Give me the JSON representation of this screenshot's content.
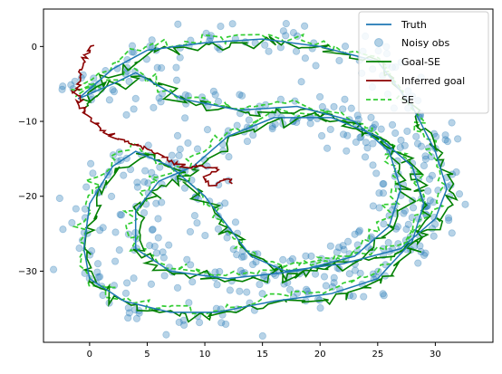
{
  "chart_data": {
    "type": "line",
    "xlim": [
      -4.0,
      35.0
    ],
    "ylim": [
      -39.5,
      5.0
    ],
    "xticks": [
      0,
      5,
      10,
      15,
      20,
      25,
      30
    ],
    "yticks": [
      0,
      -10,
      -20,
      -30
    ],
    "grid": false,
    "legend_position": "top-right",
    "series": [
      {
        "name": "Truth",
        "kind": "line",
        "color": "#1f77b4",
        "points": [
          [
            -1,
            -7
          ],
          [
            2,
            -3
          ],
          [
            5,
            -0.5
          ],
          [
            10,
            0.5
          ],
          [
            15,
            1
          ],
          [
            20,
            0
          ],
          [
            25,
            -2
          ],
          [
            28,
            -8
          ],
          [
            30,
            -14
          ],
          [
            31,
            -19
          ],
          [
            30,
            -23
          ],
          [
            27,
            -27
          ],
          [
            22,
            -29
          ],
          [
            17,
            -30
          ],
          [
            14,
            -28
          ],
          [
            12,
            -24
          ],
          [
            10,
            -20
          ],
          [
            7,
            -16
          ],
          [
            4,
            -14
          ],
          [
            2,
            -16
          ],
          [
            0,
            -21
          ],
          [
            -0.5,
            -27
          ],
          [
            0,
            -31
          ],
          [
            3,
            -34
          ],
          [
            7,
            -35.5
          ],
          [
            11,
            -35.5
          ],
          [
            16,
            -34
          ],
          [
            21,
            -33
          ],
          [
            25,
            -31
          ],
          [
            28,
            -26
          ],
          [
            29,
            -21
          ],
          [
            28,
            -16
          ],
          [
            25,
            -12
          ],
          [
            21,
            -9.5
          ],
          [
            16,
            -9.5
          ],
          [
            12,
            -12
          ],
          [
            9,
            -16
          ],
          [
            6,
            -18
          ],
          [
            4,
            -22
          ],
          [
            4,
            -27
          ],
          [
            7,
            -30
          ],
          [
            12,
            -31
          ],
          [
            18,
            -30
          ],
          [
            23,
            -28
          ],
          [
            26,
            -24
          ],
          [
            27,
            -19
          ],
          [
            26,
            -14
          ],
          [
            23,
            -10
          ],
          [
            18,
            -8
          ],
          [
            13,
            -8.5
          ],
          [
            8,
            -7
          ],
          [
            4,
            -3.5
          ],
          [
            2,
            -5
          ],
          [
            -1,
            -7
          ]
        ]
      },
      {
        "name": "Noisy obs",
        "kind": "scatter",
        "color": "#1f77b4"
      },
      {
        "name": "Goal-SE",
        "kind": "line",
        "color": "#008000",
        "offset": [
          0.3,
          -0.4
        ]
      },
      {
        "name": "Inferred goal",
        "kind": "line",
        "color": "#8b0000",
        "points": [
          [
            0,
            0
          ],
          [
            -0.5,
            -2
          ],
          [
            -0.8,
            -4
          ],
          [
            -1,
            -6
          ],
          [
            -0.8,
            -8
          ],
          [
            0.5,
            -10.5
          ],
          [
            2,
            -12
          ],
          [
            4,
            -13
          ],
          [
            6,
            -14.5
          ],
          [
            7.5,
            -15.5
          ],
          [
            9,
            -16
          ],
          [
            10.5,
            -16.3
          ],
          [
            11,
            -16.5
          ],
          [
            10.5,
            -17
          ],
          [
            10,
            -18
          ],
          [
            10.5,
            -18.5
          ],
          [
            11.5,
            -18
          ],
          [
            12,
            -17.5
          ],
          [
            12.3,
            -18.3
          ]
        ]
      },
      {
        "name": "SE",
        "kind": "dashed",
        "color": "#32cd32",
        "offset": [
          -0.3,
          0.5
        ]
      }
    ]
  }
}
